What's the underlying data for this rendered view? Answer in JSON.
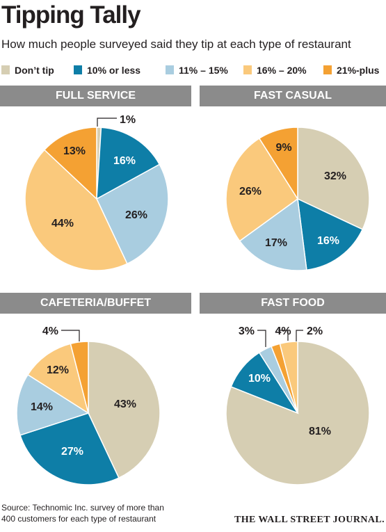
{
  "header": {
    "title": "Tipping Tally",
    "subtitle": "How much people surveyed said they tip at each type of restaurant"
  },
  "legend": [
    {
      "label": "Don’t tip",
      "color": "#d6ceb3"
    },
    {
      "label": "10% or less",
      "color": "#0e7ea7"
    },
    {
      "label": "11% – 15%",
      "color": "#a9cde0"
    },
    {
      "label": "16% – 20%",
      "color": "#fac97c"
    },
    {
      "label": "21%-plus",
      "color": "#f4a133"
    }
  ],
  "chart_data": [
    {
      "type": "pie",
      "title": "FULL SERVICE",
      "categories": [
        "Don’t tip",
        "10% or less",
        "11% – 15%",
        "16% – 20%",
        "21%-plus"
      ],
      "values": [
        1,
        16,
        26,
        44,
        13
      ],
      "labels": [
        "1%",
        "16%",
        "26%",
        "44%",
        "13%"
      ]
    },
    {
      "type": "pie",
      "title": "FAST CASUAL",
      "categories": [
        "Don’t tip",
        "10% or less",
        "11% – 15%",
        "16% – 20%",
        "21%-plus"
      ],
      "values": [
        32,
        16,
        17,
        26,
        9
      ],
      "labels": [
        "32%",
        "16%",
        "17%",
        "26%",
        "9%"
      ]
    },
    {
      "type": "pie",
      "title": "CAFETERIA/BUFFET",
      "categories": [
        "Don’t tip",
        "10% or less",
        "11% – 15%",
        "16% – 20%",
        "21%-plus"
      ],
      "values": [
        43,
        27,
        14,
        12,
        4
      ],
      "labels": [
        "43%",
        "27%",
        "14%",
        "12%",
        "4%"
      ]
    },
    {
      "type": "pie",
      "title": "FAST FOOD",
      "categories": [
        "Don’t tip",
        "10% or less",
        "11% – 15%",
        "16% – 20%",
        "21%-plus"
      ],
      "values": [
        81,
        10,
        3,
        4,
        2
      ],
      "labels": [
        "81%",
        "10%",
        "3%",
        "4%",
        "2%"
      ]
    }
  ],
  "footer": {
    "source_line1": "Source:  Technomic Inc. survey of more than",
    "source_line2": "400 customers for each type of restaurant",
    "credit": "THE WALL STREET JOURNAL."
  }
}
